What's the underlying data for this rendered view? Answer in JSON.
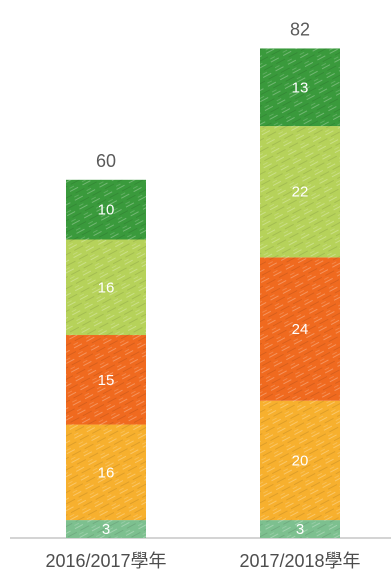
{
  "chart_data": {
    "type": "bar",
    "stacked": true,
    "categories": [
      "2016/2017學年",
      "2017/2018學年"
    ],
    "totals": [
      "60",
      "82"
    ],
    "series": [
      {
        "values": [
          3,
          3
        ],
        "color": "#7dc08f"
      },
      {
        "values": [
          16,
          20
        ],
        "color": "#f7b02e"
      },
      {
        "values": [
          15,
          24
        ],
        "color": "#f06a1f"
      },
      {
        "values": [
          16,
          22
        ],
        "color": "#b6d25a"
      },
      {
        "values": [
          10,
          13
        ],
        "color": "#3a9a3c"
      }
    ],
    "title": "",
    "xlabel": "",
    "ylabel": "",
    "grid": false,
    "legend": false
  }
}
